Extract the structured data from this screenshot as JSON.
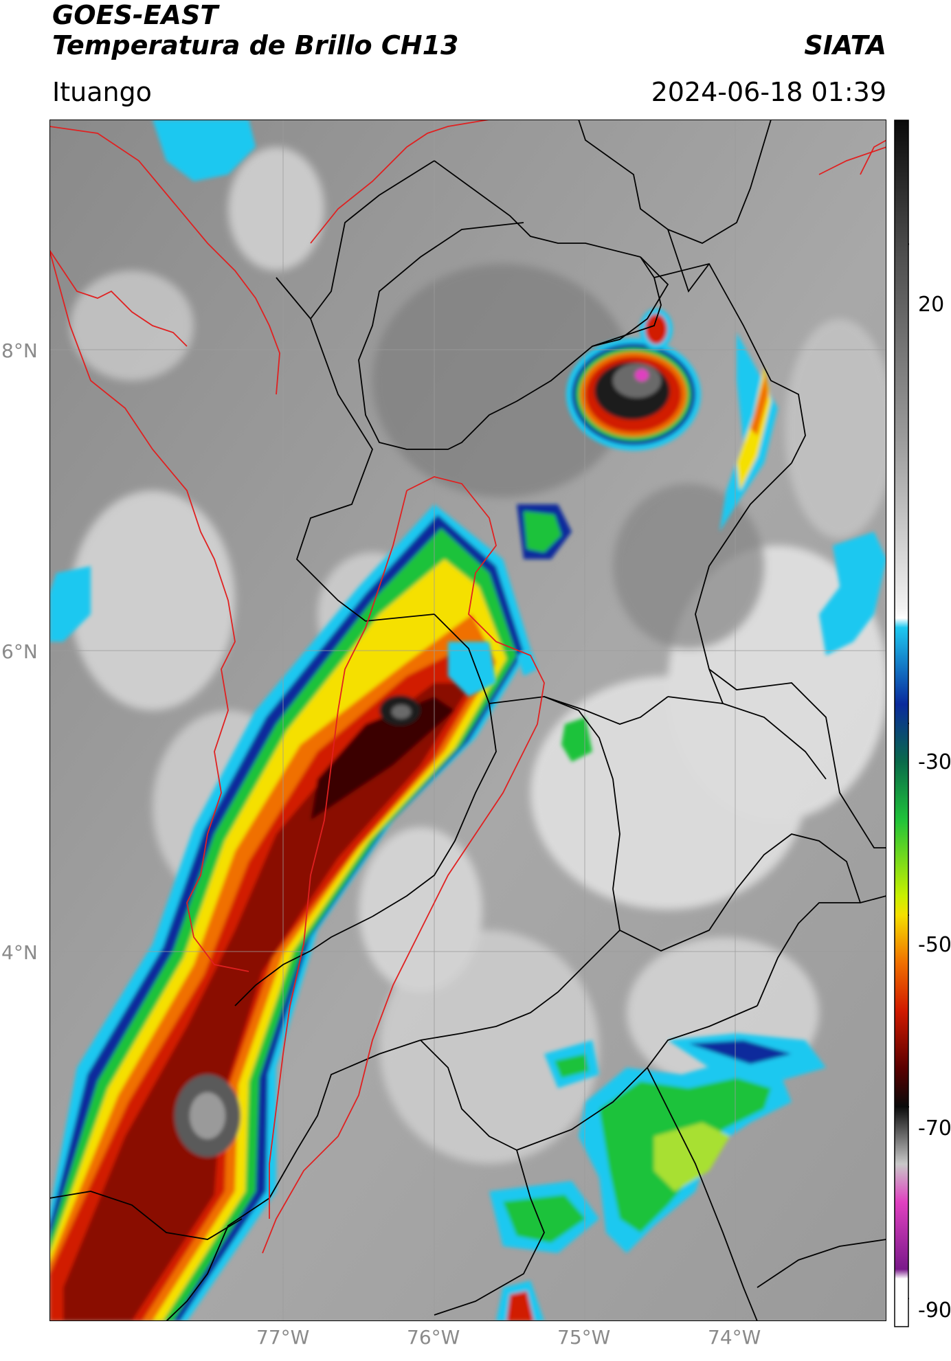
{
  "header": {
    "satellite": "GOES-EAST",
    "product": "Temperatura de Brillo CH13",
    "brand": "SIATA",
    "location": "Ituango",
    "datetime": "2024-06-18 01:39"
  },
  "map": {
    "lat_labels": [
      "8°N",
      "6°N",
      "4°N"
    ],
    "lon_labels": [
      "77°W",
      "76°W",
      "75°W",
      "74°W"
    ],
    "lon_range": [
      -78.55,
      -73.0
    ],
    "lat_range": [
      1.55,
      9.55
    ]
  },
  "colorbar": {
    "ticks": [
      "20",
      "-30",
      "-50",
      "-70",
      "-90"
    ],
    "tick_values": [
      20,
      -30,
      -50,
      -70,
      -90
    ],
    "range": [
      -93,
      33
    ],
    "colors": {
      "warm": "#4a4a4a",
      "light": "#f2f2f2",
      "cyan": "#1ec8f0",
      "blue": "#0a2a9c",
      "green": "#1fc23a",
      "yellow": "#f5e000",
      "orange": "#f07000",
      "red": "#d11a00",
      "darkred": "#5a0000",
      "black": "#0a0a0a",
      "magenta": "#e040c0",
      "purple": "#7a1a8a"
    }
  }
}
